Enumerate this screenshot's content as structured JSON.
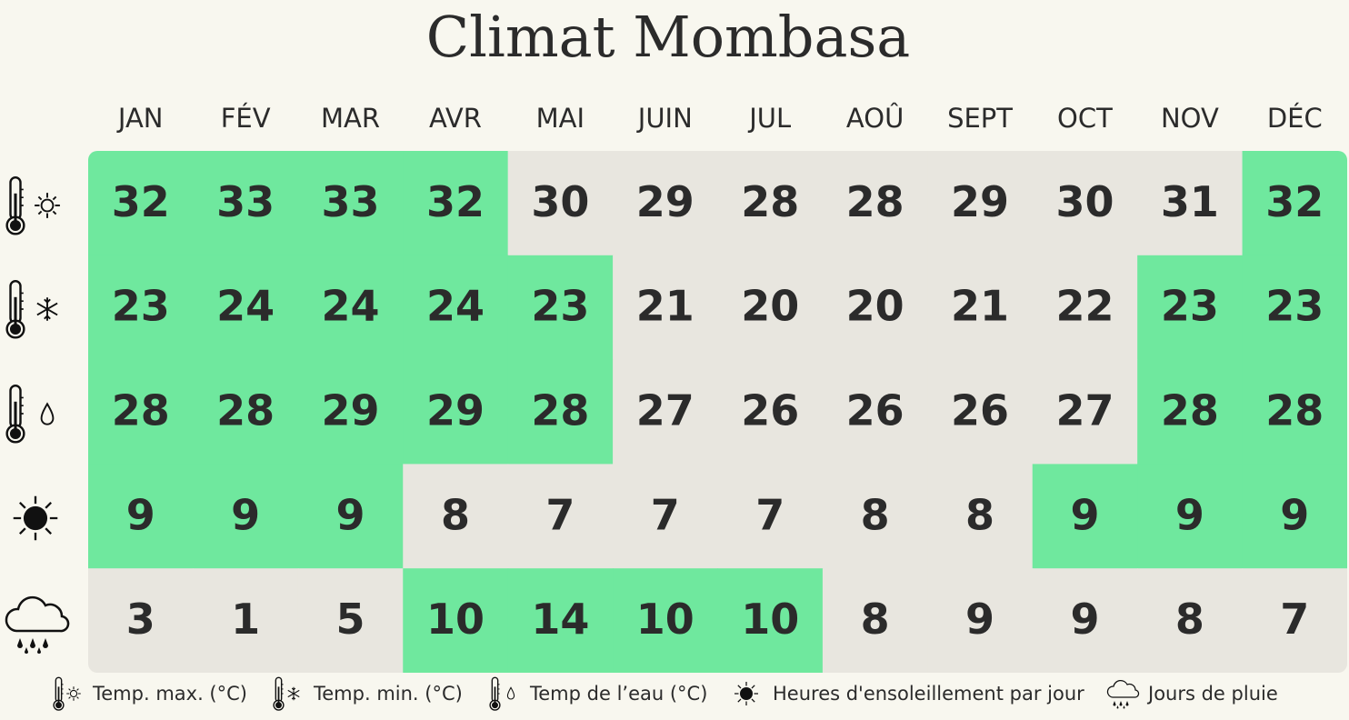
{
  "title": "Climat Mombasa",
  "months": [
    "JAN",
    "FÉV",
    "MAR",
    "AVR",
    "MAI",
    "JUIN",
    "JUL",
    "AOÛ",
    "SEPT",
    "OCT",
    "NOV",
    "DÉC"
  ],
  "rows": [
    {
      "values": [
        32,
        33,
        33,
        32,
        30,
        29,
        28,
        28,
        29,
        30,
        31,
        32
      ],
      "highlight": [
        true,
        true,
        true,
        true,
        false,
        false,
        false,
        false,
        false,
        false,
        false,
        true
      ]
    },
    {
      "values": [
        23,
        24,
        24,
        24,
        23,
        21,
        20,
        20,
        21,
        22,
        23,
        23
      ],
      "highlight": [
        true,
        true,
        true,
        true,
        true,
        false,
        false,
        false,
        false,
        false,
        true,
        true
      ]
    },
    {
      "values": [
        28,
        28,
        29,
        29,
        28,
        27,
        26,
        26,
        26,
        27,
        28,
        28
      ],
      "highlight": [
        true,
        true,
        true,
        true,
        true,
        false,
        false,
        false,
        false,
        false,
        true,
        true
      ]
    },
    {
      "values": [
        9,
        9,
        9,
        8,
        7,
        7,
        7,
        8,
        8,
        9,
        9,
        9
      ],
      "highlight": [
        true,
        true,
        true,
        false,
        false,
        false,
        false,
        false,
        false,
        true,
        true,
        true
      ]
    },
    {
      "values": [
        3,
        1,
        5,
        10,
        14,
        10,
        10,
        8,
        9,
        9,
        8,
        7
      ],
      "highlight": [
        false,
        false,
        false,
        true,
        true,
        true,
        true,
        false,
        false,
        false,
        false,
        false
      ]
    }
  ],
  "highlight_color": "#6fe89e",
  "base_color": "#e8e6df",
  "legend": [
    "Temp. max. (°C)",
    "Temp. min. (°C)",
    "Temp de l’eau (°C)",
    "Heures d'ensoleillement par jour",
    "Jours de pluie"
  ]
}
